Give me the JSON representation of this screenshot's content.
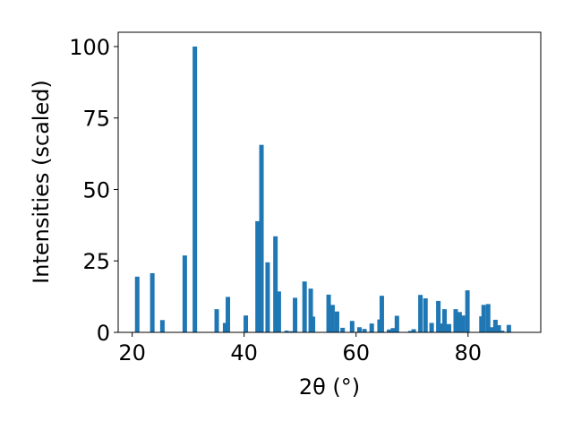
{
  "chart_data": {
    "type": "bar",
    "xlabel": "2θ (°)",
    "ylabel": "Intensities (scaled)",
    "xlim": [
      17.5,
      93
    ],
    "ylim": [
      0,
      105
    ],
    "xticks": [
      20,
      40,
      60,
      80
    ],
    "yticks": [
      0,
      25,
      50,
      75,
      100
    ],
    "grid": false,
    "bar_color": "#1f77b4",
    "x": [
      20.9,
      23.6,
      25.4,
      29.4,
      31.2,
      35.1,
      36.6,
      37.1,
      40.3,
      42.4,
      43.1,
      44.2,
      45.6,
      46.2,
      47.6,
      48.5,
      49.1,
      50.8,
      51.9,
      52.3,
      55.1,
      55.8,
      56.6,
      57.6,
      59.3,
      60.6,
      61.5,
      62.8,
      64.2,
      64.6,
      65.9,
      66.6,
      67.3,
      69.7,
      70.3,
      71.5,
      72.4,
      73.5,
      74.7,
      75.4,
      75.8,
      76.6,
      77.8,
      78.5,
      79.1,
      79.9,
      82.4,
      82.8,
      83.6,
      84.2,
      84.9,
      85.5,
      86.1,
      87.3
    ],
    "values": [
      19.5,
      20.7,
      4.3,
      26.9,
      100,
      8.1,
      3.3,
      12.4,
      5.9,
      38.9,
      65.6,
      24.5,
      33.6,
      14.3,
      0.6,
      0.4,
      12.1,
      17.8,
      15.3,
      5.5,
      13.2,
      9.6,
      7.3,
      1.6,
      4.0,
      1.8,
      1.2,
      3.1,
      4.5,
      12.8,
      1.0,
      1.5,
      5.8,
      0.5,
      1.1,
      13.1,
      11.9,
      3.3,
      11.0,
      3.1,
      8.1,
      2.9,
      8.1,
      7.1,
      5.9,
      14.7,
      5.6,
      9.6,
      9.9,
      1.8,
      4.4,
      2.5,
      0.6,
      2.6
    ]
  }
}
